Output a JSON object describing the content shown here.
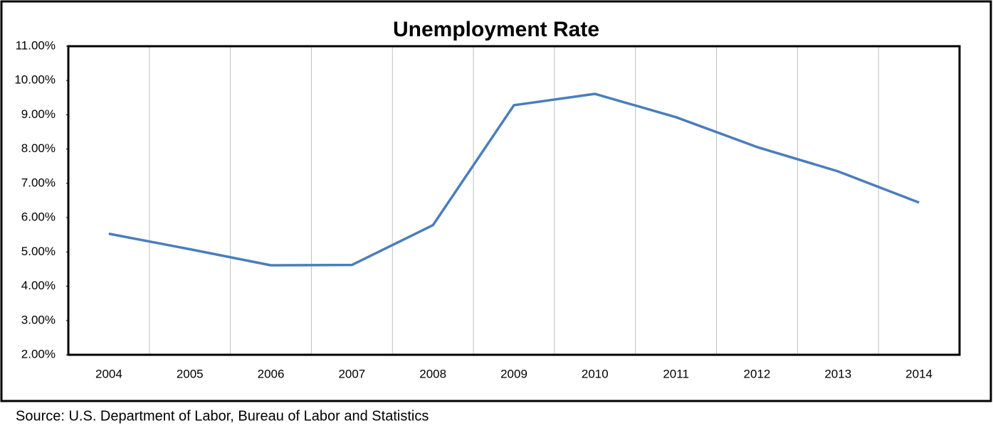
{
  "chart_data": {
    "type": "line",
    "title": "Unemployment Rate",
    "categories": [
      "2004",
      "2005",
      "2006",
      "2007",
      "2008",
      "2009",
      "2010",
      "2011",
      "2012",
      "2013",
      "2014"
    ],
    "values": [
      5.53,
      5.08,
      4.61,
      4.62,
      5.78,
      9.28,
      9.61,
      8.93,
      8.06,
      7.35,
      6.44
    ],
    "color": "#4a7ebb",
    "ylim": [
      2,
      11
    ],
    "yticks": [
      {
        "value": 2,
        "label": "2.00%"
      },
      {
        "value": 3,
        "label": "3.00%"
      },
      {
        "value": 4,
        "label": "4.00%"
      },
      {
        "value": 5,
        "label": "5.00%"
      },
      {
        "value": 6,
        "label": "6.00%"
      },
      {
        "value": 7,
        "label": "7.00%"
      },
      {
        "value": 8,
        "label": "8.00%"
      },
      {
        "value": 9,
        "label": "9.00%"
      },
      {
        "value": 10,
        "label": "10.00%"
      },
      {
        "value": 11,
        "label": "11.00%"
      }
    ],
    "source": "Source: U.S. Department of Labor, Bureau of Labor and Statistics"
  }
}
